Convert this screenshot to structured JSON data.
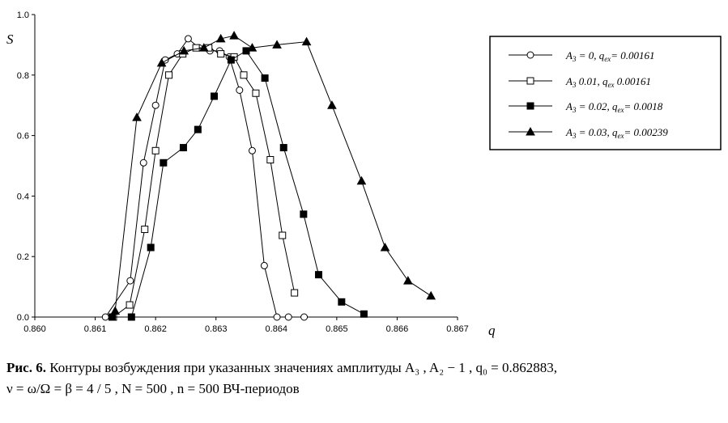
{
  "chart_data": {
    "type": "line",
    "xlabel": "q",
    "ylabel": "S",
    "xlim": [
      0.86,
      0.867
    ],
    "ylim": [
      0.0,
      1.0
    ],
    "xticks": [
      "0.860",
      "0.861",
      "0.862",
      "0.863",
      "0.864",
      "0.865",
      "0.866",
      "0.867"
    ],
    "yticks": [
      "0.0",
      "0.2",
      "0.4",
      "0.6",
      "0.8",
      "1.0"
    ],
    "grid": false,
    "legend_position": "top-right",
    "series": [
      {
        "name": "A3 = 0,  qex = 0.00161",
        "marker": "circle-open",
        "x": [
          0.86117,
          0.86158,
          0.8618,
          0.862,
          0.86216,
          0.86236,
          0.86254,
          0.86272,
          0.8629,
          0.86306,
          0.86322,
          0.86339,
          0.8636,
          0.8638,
          0.86401,
          0.8642,
          0.86446
        ],
        "y": [
          0.0,
          0.12,
          0.51,
          0.7,
          0.85,
          0.87,
          0.92,
          0.89,
          0.88,
          0.88,
          0.86,
          0.75,
          0.55,
          0.17,
          0.0,
          0.0,
          0.0
        ]
      },
      {
        "name": "A3 = 0.01,  qex = 0.00161",
        "marker": "square-open",
        "x": [
          0.8613,
          0.86157,
          0.86182,
          0.862,
          0.86222,
          0.86245,
          0.86267,
          0.86288,
          0.86308,
          0.8633,
          0.86346,
          0.86366,
          0.8639,
          0.8641,
          0.8643
        ],
        "y": [
          0.0,
          0.04,
          0.29,
          0.55,
          0.8,
          0.87,
          0.89,
          0.89,
          0.87,
          0.86,
          0.8,
          0.74,
          0.52,
          0.27,
          0.08
        ]
      },
      {
        "name": "A3 = 0.02,  qex = 0.0018",
        "marker": "square-filled",
        "x": [
          0.86128,
          0.8616,
          0.86192,
          0.86213,
          0.86246,
          0.8627,
          0.86297,
          0.86325,
          0.8635,
          0.86381,
          0.86412,
          0.86445,
          0.8647,
          0.86508,
          0.86545
        ],
        "y": [
          0.0,
          0.0,
          0.23,
          0.51,
          0.56,
          0.62,
          0.73,
          0.85,
          0.88,
          0.79,
          0.56,
          0.34,
          0.14,
          0.05,
          0.01
        ]
      },
      {
        "name": "A3 = 0.03,  qex = 0.00239",
        "marker": "triangle-filled",
        "x": [
          0.86133,
          0.86169,
          0.8621,
          0.86247,
          0.8628,
          0.86308,
          0.8633,
          0.8636,
          0.86401,
          0.8645,
          0.86492,
          0.86541,
          0.8658,
          0.86618,
          0.86656
        ],
        "y": [
          0.02,
          0.66,
          0.84,
          0.88,
          0.89,
          0.92,
          0.93,
          0.89,
          0.9,
          0.91,
          0.7,
          0.45,
          0.23,
          0.12,
          0.07
        ]
      }
    ]
  },
  "legend": [
    {
      "pre": "A",
      "sub": "3",
      "mid": " = 0,  q",
      "sub2": "ex",
      "post": "= 0.00161"
    },
    {
      "pre": "A",
      "sub": "3",
      "mid": "   0.01,  q",
      "sub2": "ex",
      "post": "   0.00161"
    },
    {
      "pre": "A",
      "sub": "3",
      "mid": " = 0.02, q",
      "sub2": "ex",
      "post": "= 0.0018"
    },
    {
      "pre": "A",
      "sub": "3",
      "mid": " = 0.03, q",
      "sub2": "ex",
      "post": "= 0.00239"
    }
  ],
  "caption": {
    "label": "Рис. 6.",
    "line1": " Контуры возбуждения при указанных значениях амплитуды  A₃ ,  A₂ − 1 ,  q₀ = 0.862883,",
    "line2": "ν = ω/Ω = β = 4 / 5 ,  N = 500 ,  n = 500  ВЧ-периодов"
  }
}
